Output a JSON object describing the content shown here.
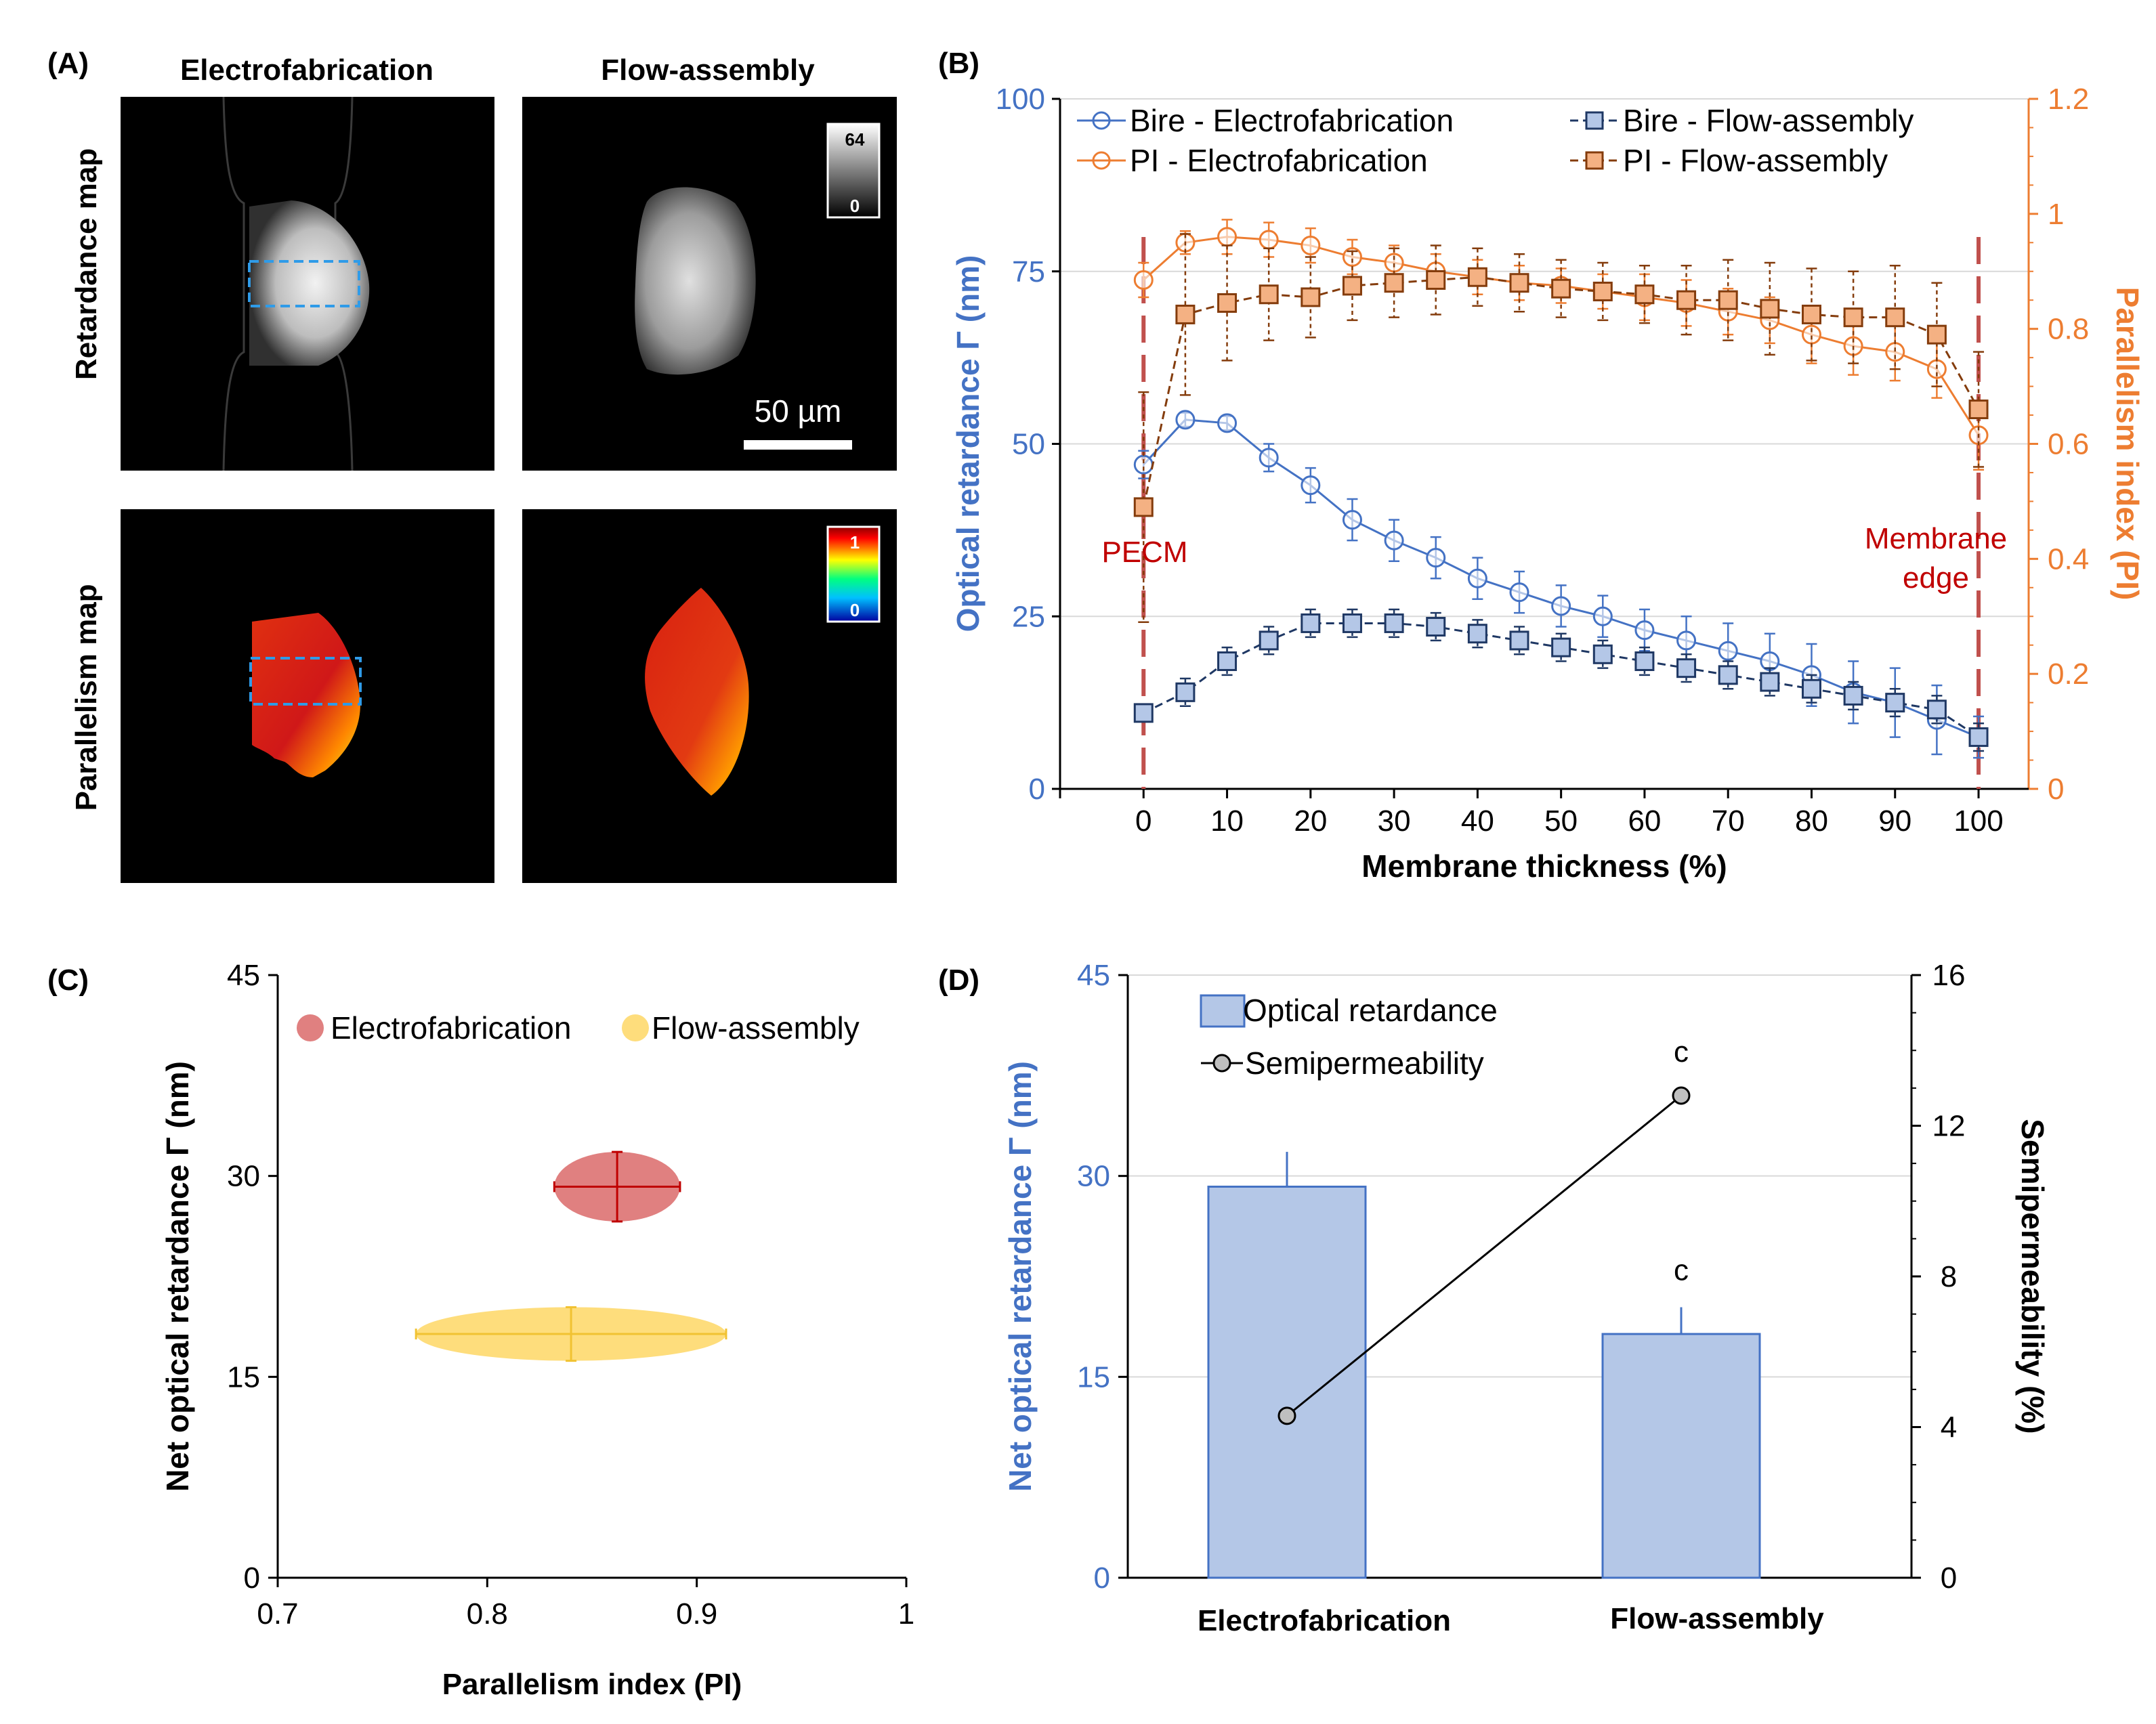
{
  "panel_labels": {
    "a": "(A)",
    "b": "(B)",
    "c": "(C)",
    "d": "(D)"
  },
  "panel_a": {
    "col_titles": [
      "Electrofabrication",
      "Flow-assembly"
    ],
    "row_titles": [
      "Retardance map",
      "Parallelism map"
    ],
    "retardance_colorbar": {
      "max": "64",
      "min": "0"
    },
    "parallelism_colorbar": {
      "max": "1",
      "min": "0"
    },
    "scale_bar": "50 µm"
  },
  "chart_data": [
    {
      "panel": "B",
      "type": "line",
      "xlabel": "Membrane thickness (%)",
      "ylabel": "Optical retardance Γ (nm)",
      "y2label": "Parallelism index (PI)",
      "x": [
        0,
        5,
        10,
        15,
        20,
        25,
        30,
        35,
        40,
        45,
        50,
        55,
        60,
        65,
        70,
        75,
        80,
        85,
        90,
        95,
        100
      ],
      "xticks": [
        "0",
        "10",
        "20",
        "30",
        "40",
        "50",
        "60",
        "70",
        "80",
        "90",
        "100"
      ],
      "xlim": [
        -10,
        106
      ],
      "ylim": [
        0,
        100
      ],
      "yticks": [
        "0",
        "25",
        "50",
        "75",
        "100"
      ],
      "y2lim": [
        0,
        1.2
      ],
      "y2ticks": [
        "0",
        "0.2",
        "0.4",
        "0.6",
        "0.8",
        "1",
        "1.2"
      ],
      "series": [
        {
          "name": "Bire - Electrofabrication",
          "axis": "left",
          "color": "#4472c4",
          "marker": "circle",
          "dash": "solid",
          "values": [
            47,
            53.5,
            53,
            48,
            44,
            39,
            36,
            33.5,
            30.5,
            28.5,
            26.5,
            25,
            23,
            21.5,
            20,
            18.5,
            16.5,
            14,
            12.5,
            10,
            7.5
          ],
          "errors": [
            2,
            1,
            1,
            2,
            2.5,
            3,
            3,
            3,
            3,
            3,
            3,
            3,
            3,
            3.5,
            4,
            4,
            4.5,
            4.5,
            5,
            5,
            3
          ]
        },
        {
          "name": "Bire - Flow-assembly",
          "axis": "left",
          "color": "#1f3864",
          "marker": "square",
          "dash": "dash",
          "values": [
            11,
            14,
            18.5,
            21.5,
            24,
            24,
            24,
            23.5,
            22.5,
            21.5,
            20.5,
            19.5,
            18.5,
            17.5,
            16.5,
            15.5,
            14.5,
            13.5,
            12.5,
            11.5,
            7.5
          ],
          "errors": [
            1,
            2,
            2,
            2,
            2,
            2,
            2,
            2,
            2,
            2,
            2,
            2,
            2,
            2,
            2,
            2,
            2,
            2,
            2,
            2,
            2
          ]
        },
        {
          "name": "PI - Electrofabrication",
          "axis": "right",
          "color": "#ed7d31",
          "marker": "circle",
          "dash": "solid",
          "values": [
            0.885,
            0.95,
            0.96,
            0.955,
            0.945,
            0.925,
            0.915,
            0.9,
            0.89,
            0.88,
            0.875,
            0.865,
            0.855,
            0.845,
            0.83,
            0.815,
            0.79,
            0.77,
            0.76,
            0.73,
            0.615
          ],
          "errors": [
            0.03,
            0.02,
            0.03,
            0.03,
            0.03,
            0.03,
            0.03,
            0.03,
            0.03,
            0.03,
            0.03,
            0.03,
            0.04,
            0.04,
            0.04,
            0.04,
            0.05,
            0.05,
            0.05,
            0.05,
            0.06
          ]
        },
        {
          "name": "PI - Flow-assembly",
          "axis": "right",
          "color": "#843c0c",
          "marker": "square",
          "dash": "dash",
          "values": [
            0.49,
            0.825,
            0.845,
            0.86,
            0.855,
            0.875,
            0.88,
            0.885,
            0.89,
            0.88,
            0.87,
            0.865,
            0.86,
            0.85,
            0.85,
            0.835,
            0.825,
            0.82,
            0.82,
            0.79,
            0.66
          ],
          "errors": [
            0.2,
            0.14,
            0.1,
            0.08,
            0.07,
            0.06,
            0.06,
            0.06,
            0.05,
            0.05,
            0.05,
            0.05,
            0.05,
            0.06,
            0.07,
            0.08,
            0.08,
            0.08,
            0.09,
            0.09,
            0.1
          ]
        }
      ],
      "annotations": [
        {
          "text": "PECM",
          "x": 0
        },
        {
          "text": "Membrane",
          "x": 100
        },
        {
          "text": "edge",
          "x": 100
        }
      ]
    },
    {
      "panel": "C",
      "type": "scatter",
      "xlabel": "Parallelism index (PI)",
      "ylabel": "Net optical retardance Γ (nm)",
      "xlim": [
        0.7,
        1
      ],
      "xticks": [
        "0.7",
        "0.8",
        "0.9",
        "1"
      ],
      "ylim": [
        0,
        45
      ],
      "yticks": [
        "0",
        "15",
        "30",
        "45"
      ],
      "series": [
        {
          "name": "Electrofabrication",
          "color": "#e08080",
          "line": "#c00000",
          "x": 0.862,
          "y": 29.2,
          "x_err": 0.03,
          "y_err": 2.6
        },
        {
          "name": "Flow-assembly",
          "color": "#fedd7c",
          "line": "#f1c232",
          "x": 0.84,
          "y": 18.2,
          "x_err": 0.074,
          "y_err": 2.0
        }
      ]
    },
    {
      "panel": "D",
      "type": "bar",
      "categories": [
        "Electrofabrication",
        "Flow-assembly"
      ],
      "ylabel": "Net optical retardance Γ (nm)",
      "y2label": "Semipermeability (%)",
      "ylim": [
        0,
        45
      ],
      "yticks": [
        "0",
        "15",
        "30",
        "45"
      ],
      "y2lim": [
        0,
        16
      ],
      "y2ticks": [
        "0",
        "4",
        "8",
        "12",
        "16"
      ],
      "series": [
        {
          "name": "Optical retardance",
          "axis": "left",
          "values": [
            29.2,
            18.2
          ],
          "errors": [
            2.6,
            2.0
          ]
        },
        {
          "name": "Semipermeability",
          "axis": "right",
          "values": [
            4.3,
            12.8
          ],
          "errors": [
            0.1,
            0.1
          ]
        }
      ],
      "annotations": [
        "c",
        "c"
      ]
    }
  ]
}
